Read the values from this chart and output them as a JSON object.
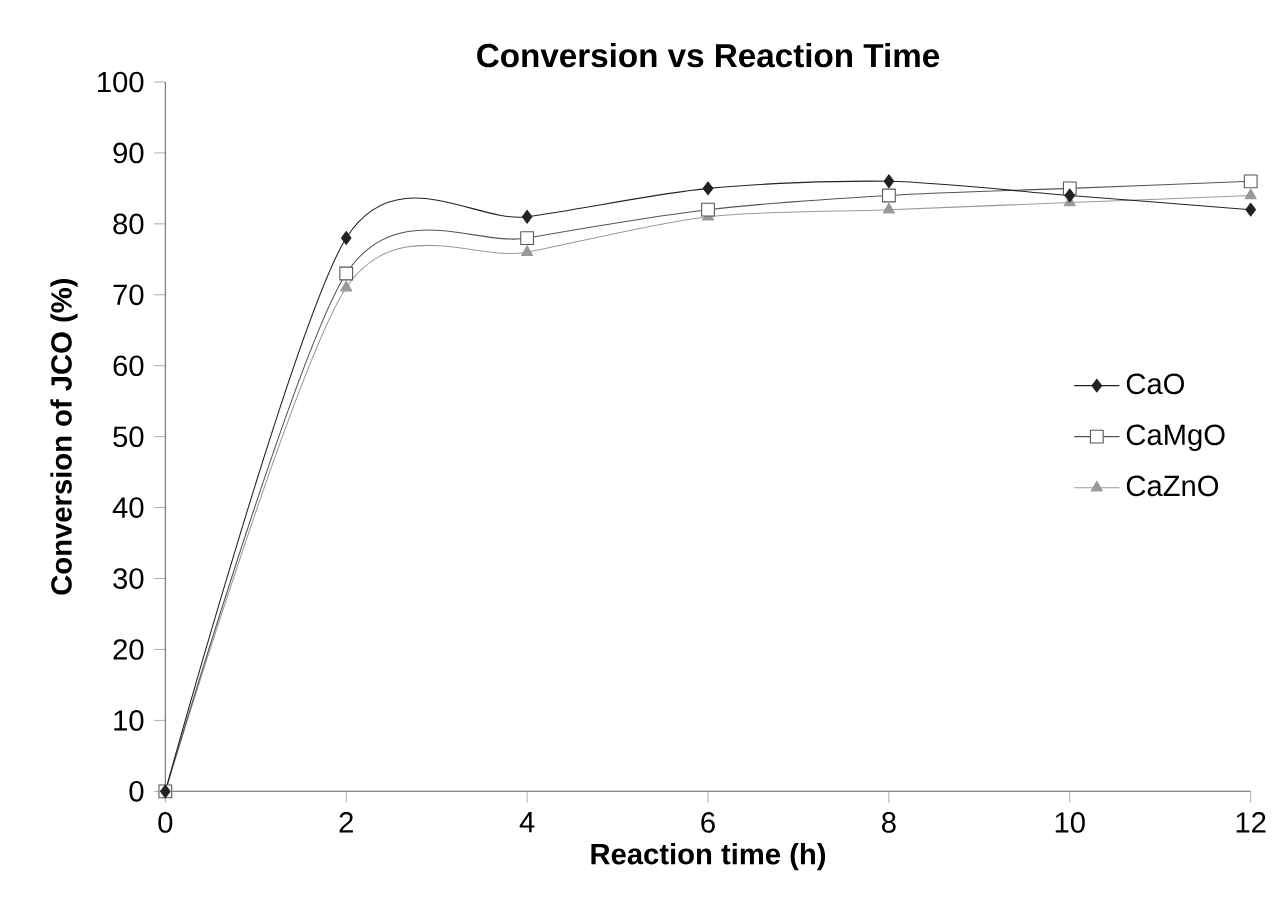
{
  "chart_data": {
    "type": "line",
    "title": "Conversion vs Reaction Time",
    "xlabel": "Reaction time (h)",
    "ylabel": "Conversion of JCO (%)",
    "x": [
      0,
      2,
      4,
      6,
      8,
      10,
      12
    ],
    "series": [
      {
        "name": "CaO",
        "color": "#222222",
        "marker": "diamond",
        "values": [
          0,
          78,
          81,
          85,
          86,
          84,
          82
        ]
      },
      {
        "name": "CaMgO",
        "color": "#555555",
        "marker": "square",
        "values": [
          0,
          73,
          78,
          82,
          84,
          85,
          86
        ]
      },
      {
        "name": "CaZnO",
        "color": "#999999",
        "marker": "triangle",
        "values": [
          0,
          71,
          76,
          81,
          82,
          83,
          84
        ]
      }
    ],
    "xlim": [
      0,
      12
    ],
    "xticks": [
      0,
      2,
      4,
      6,
      8,
      10,
      12
    ],
    "ylim": [
      0,
      100
    ],
    "yticks": [
      0,
      10,
      20,
      30,
      40,
      50,
      60,
      70,
      80,
      90,
      100
    ],
    "grid": false,
    "legend": "right",
    "line_style": "solid"
  }
}
